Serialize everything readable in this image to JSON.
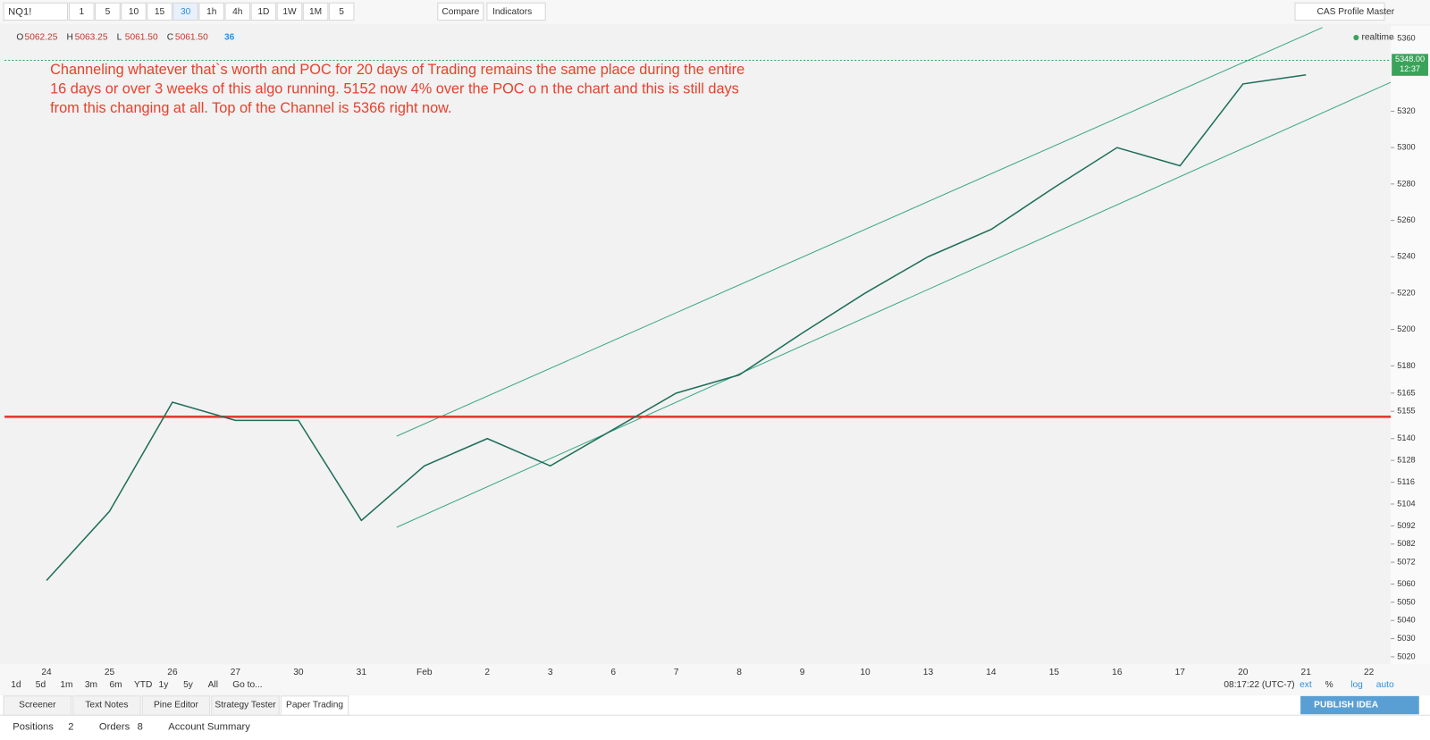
{
  "toolbar": {
    "symbol": "NQ1!",
    "intervals": [
      "1",
      "5",
      "10",
      "15",
      "30",
      "1h",
      "4h",
      "1D",
      "1W",
      "1M",
      "5"
    ],
    "compare": "Compare",
    "indicators": "Indicators",
    "layout": "CAS Profile Master"
  },
  "ohlc": [
    {
      "label": "O",
      "value": "5062.25"
    },
    {
      "label": "H",
      "value": "5063.25"
    },
    {
      "label": "L",
      "value": "5061.50"
    },
    {
      "label": "C",
      "value": "5061.50"
    }
  ],
  "bar_count": "36",
  "status": "realtime",
  "chart_data": {
    "type": "line",
    "annotation": [
      "Channeling whatever that`s worth and POC for 20 days of Trading remains the same place during the entire",
      "16 days or over 3 weeks of this algo running.  5152 now 4% over the POC o n the chart and this is still days",
      "from this changing at all. Top of the Channel is 5366 right now."
    ],
    "categories": [
      "24",
      "25",
      "26",
      "27",
      "30",
      "31",
      "Feb",
      "2",
      "3",
      "6",
      "7",
      "8",
      "9",
      "10",
      "13",
      "14",
      "15",
      "16",
      "17",
      "20",
      "21",
      "22"
    ],
    "values": [
      5062,
      5100,
      5160,
      5150,
      5150,
      5095,
      5125,
      5140,
      5125,
      5145,
      5165,
      5175,
      5198,
      5220,
      5240,
      5255,
      5278,
      5300,
      5290,
      5335,
      5340,
      null
    ],
    "color": "#1e6e5a",
    "reference_line": {
      "value": 5152,
      "color": "#e53935"
    },
    "last_price": {
      "value": 5348,
      "label": "5348.00"
    },
    "countdown": "12:37",
    "ylim": [
      5016,
      5366
    ],
    "yticks": [
      5360,
      5320,
      5300,
      5280,
      5260,
      5240,
      5220,
      5200,
      5180,
      5165,
      5155,
      5140,
      5128,
      5116,
      5104,
      5092,
      5082,
      5072,
      5060,
      5050,
      5040,
      5030,
      5020
    ]
  },
  "range_buttons": [
    "1d",
    "5d",
    "1m",
    "3m",
    "6m",
    "YTD",
    "1y",
    "5y",
    "All",
    "Go to..."
  ],
  "clock": "08:17:22 (UTC-7)",
  "axis_options": [
    "ext",
    "%",
    "log",
    "auto"
  ],
  "tabs": [
    "Screener",
    "Text Notes",
    "Pine Editor",
    "Strategy Tester",
    "Paper Trading"
  ],
  "publish": "PUBLISH IDEA",
  "account_tabs": [
    {
      "label": "Positions",
      "count": "2"
    },
    {
      "label": "Orders",
      "count": "8"
    },
    {
      "label": "Account Summary"
    }
  ]
}
